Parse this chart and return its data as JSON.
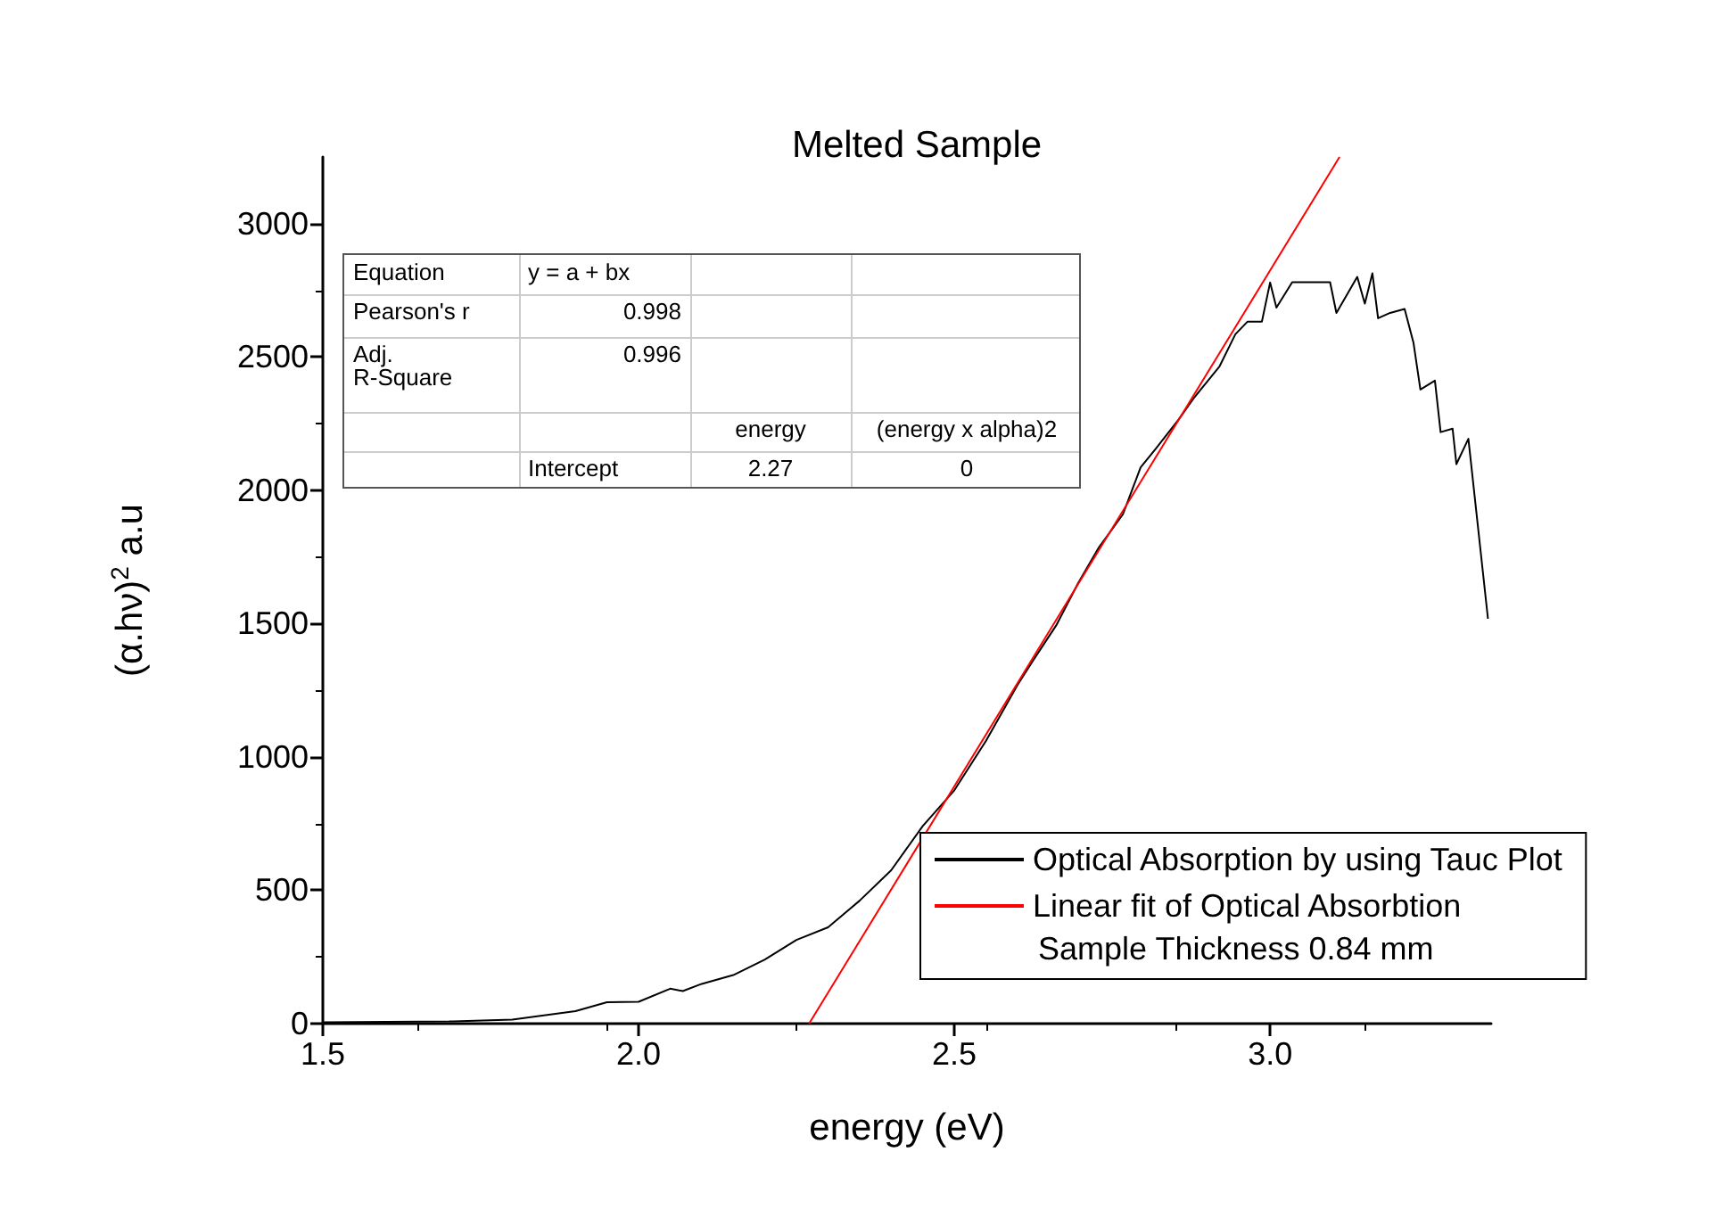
{
  "chart_data": {
    "type": "line",
    "title": "Melted Sample",
    "xlabel": "energy (eV)",
    "ylabel": "(α.hν)$^{2}$ a.u",
    "xlim": [
      1.5,
      3.35
    ],
    "xticks": [
      1.5,
      {
        "value": 2,
        "label": "2.0"
      },
      2.5,
      {
        "value": 3,
        "label": "3.0"
      }
    ],
    "ylim": [
      0,
      3250
    ],
    "yticks": [
      0,
      500,
      1000,
      1500,
      2000,
      2500,
      3000
    ],
    "grid": false,
    "legend": "bottom right",
    "marker": "none",
    "line_style": "solid",
    "series": [
      {
        "name": "Optical Absorption by using Tauc Plot",
        "color": "#000000",
        "x": [
          1.5,
          1.7,
          1.8,
          1.9,
          1.95,
          2.0,
          2.05,
          2.07,
          2.1,
          2.15,
          2.2,
          2.25,
          2.3,
          2.35,
          2.4,
          2.45,
          2.5,
          2.55,
          2.6,
          2.625,
          2.662,
          2.696,
          2.729,
          2.767,
          2.795,
          2.818,
          2.855,
          2.879,
          2.92,
          2.945,
          2.964,
          2.987,
          3.0,
          3.01,
          3.035,
          3.095,
          3.105,
          3.138,
          3.15,
          3.162,
          3.171,
          3.19,
          3.213,
          3.227,
          3.238,
          3.261,
          3.27,
          3.289,
          3.295,
          3.314,
          3.345
        ],
        "values": [
          5,
          8,
          15,
          47,
          80,
          82,
          131,
          122,
          149,
          182,
          240,
          314,
          361,
          461,
          575,
          741,
          875,
          1060,
          1270,
          1363,
          1496,
          1652,
          1786,
          1910,
          2086,
          2153,
          2265,
          2345,
          2465,
          2585,
          2632,
          2632,
          2779,
          2685,
          2780,
          2780,
          2665,
          2800,
          2700,
          2814,
          2645,
          2665,
          2680,
          2554,
          2378,
          2411,
          2218,
          2231,
          2098,
          2193,
          1518
        ]
      },
      {
        "name": "Linear fit of Optical Absorbtion",
        "color": "#ff0000",
        "x": [
          2.27,
          3.11
        ],
        "values": [
          0,
          3250
        ]
      }
    ],
    "annotations": [
      "Sample Thickness 0.84 mm",
      "Equation",
      "y = a + bx",
      "Pearson's r",
      "0.998",
      "Adj.\nR-Square",
      "0.996",
      "energy",
      "(energy x alpha)2",
      "Intercept",
      "2.27",
      "0"
    ]
  }
}
